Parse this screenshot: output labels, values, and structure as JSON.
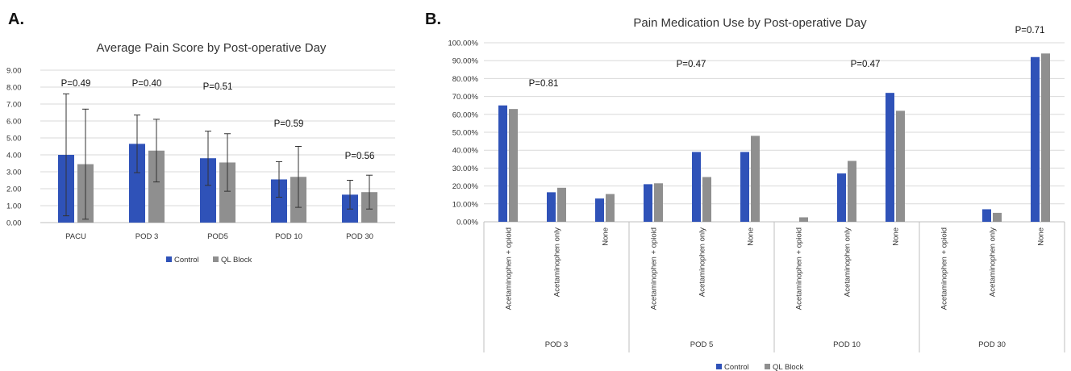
{
  "colors": {
    "control": "#2f52b8",
    "ql_block": "#8f8f8f"
  },
  "chart_data": [
    {
      "panel_label": "A.",
      "type": "bar",
      "title": "Average Pain Score by Post-operative Day",
      "categories": [
        "PACU",
        "POD 3",
        "POD5",
        "POD 10",
        "POD 30"
      ],
      "ylim": [
        0,
        9
      ],
      "yticks": [
        "0.00",
        "1.00",
        "2.00",
        "3.00",
        "4.00",
        "5.00",
        "6.00",
        "7.00",
        "8.00",
        "9.00"
      ],
      "grid": true,
      "legend": "bottom",
      "series": [
        {
          "name": "Control",
          "values": [
            4.0,
            4.65,
            3.8,
            2.55,
            1.65
          ],
          "error": [
            3.6,
            1.7,
            1.6,
            1.05,
            0.85
          ]
        },
        {
          "name": "QL Block",
          "values": [
            3.45,
            4.25,
            3.55,
            2.7,
            1.8
          ],
          "error": [
            3.25,
            1.85,
            1.7,
            1.8,
            1.0
          ]
        }
      ],
      "annotations": [
        "P=0.49",
        "P=0.40",
        "P=0.51",
        "P=0.59",
        "P=0.56"
      ]
    },
    {
      "panel_label": "B.",
      "type": "bar",
      "title": "Pain Medication Use by Post-operative Day",
      "groups": [
        "POD 3",
        "POD 5",
        "POD 10",
        "POD 30"
      ],
      "subcategories": [
        "Acetaminophen + opioid",
        "Acetaminophen only",
        "None"
      ],
      "ylim": [
        0,
        100
      ],
      "yticks": [
        "0.00%",
        "10.00%",
        "20.00%",
        "30.00%",
        "40.00%",
        "50.00%",
        "60.00%",
        "70.00%",
        "80.00%",
        "90.00%",
        "100.00%"
      ],
      "grid": true,
      "legend": "bottom",
      "series": [
        {
          "name": "Control",
          "values": [
            65,
            16.5,
            13,
            21,
            39,
            39,
            0,
            27,
            72,
            0,
            7,
            92
          ]
        },
        {
          "name": "QL Block",
          "values": [
            63,
            19,
            15.5,
            21.5,
            25,
            48,
            2.5,
            34,
            62,
            0,
            5,
            94
          ]
        }
      ],
      "annotations": [
        "P=0.81",
        "P=0.47",
        "P=0.47",
        "P=0.71"
      ]
    }
  ]
}
